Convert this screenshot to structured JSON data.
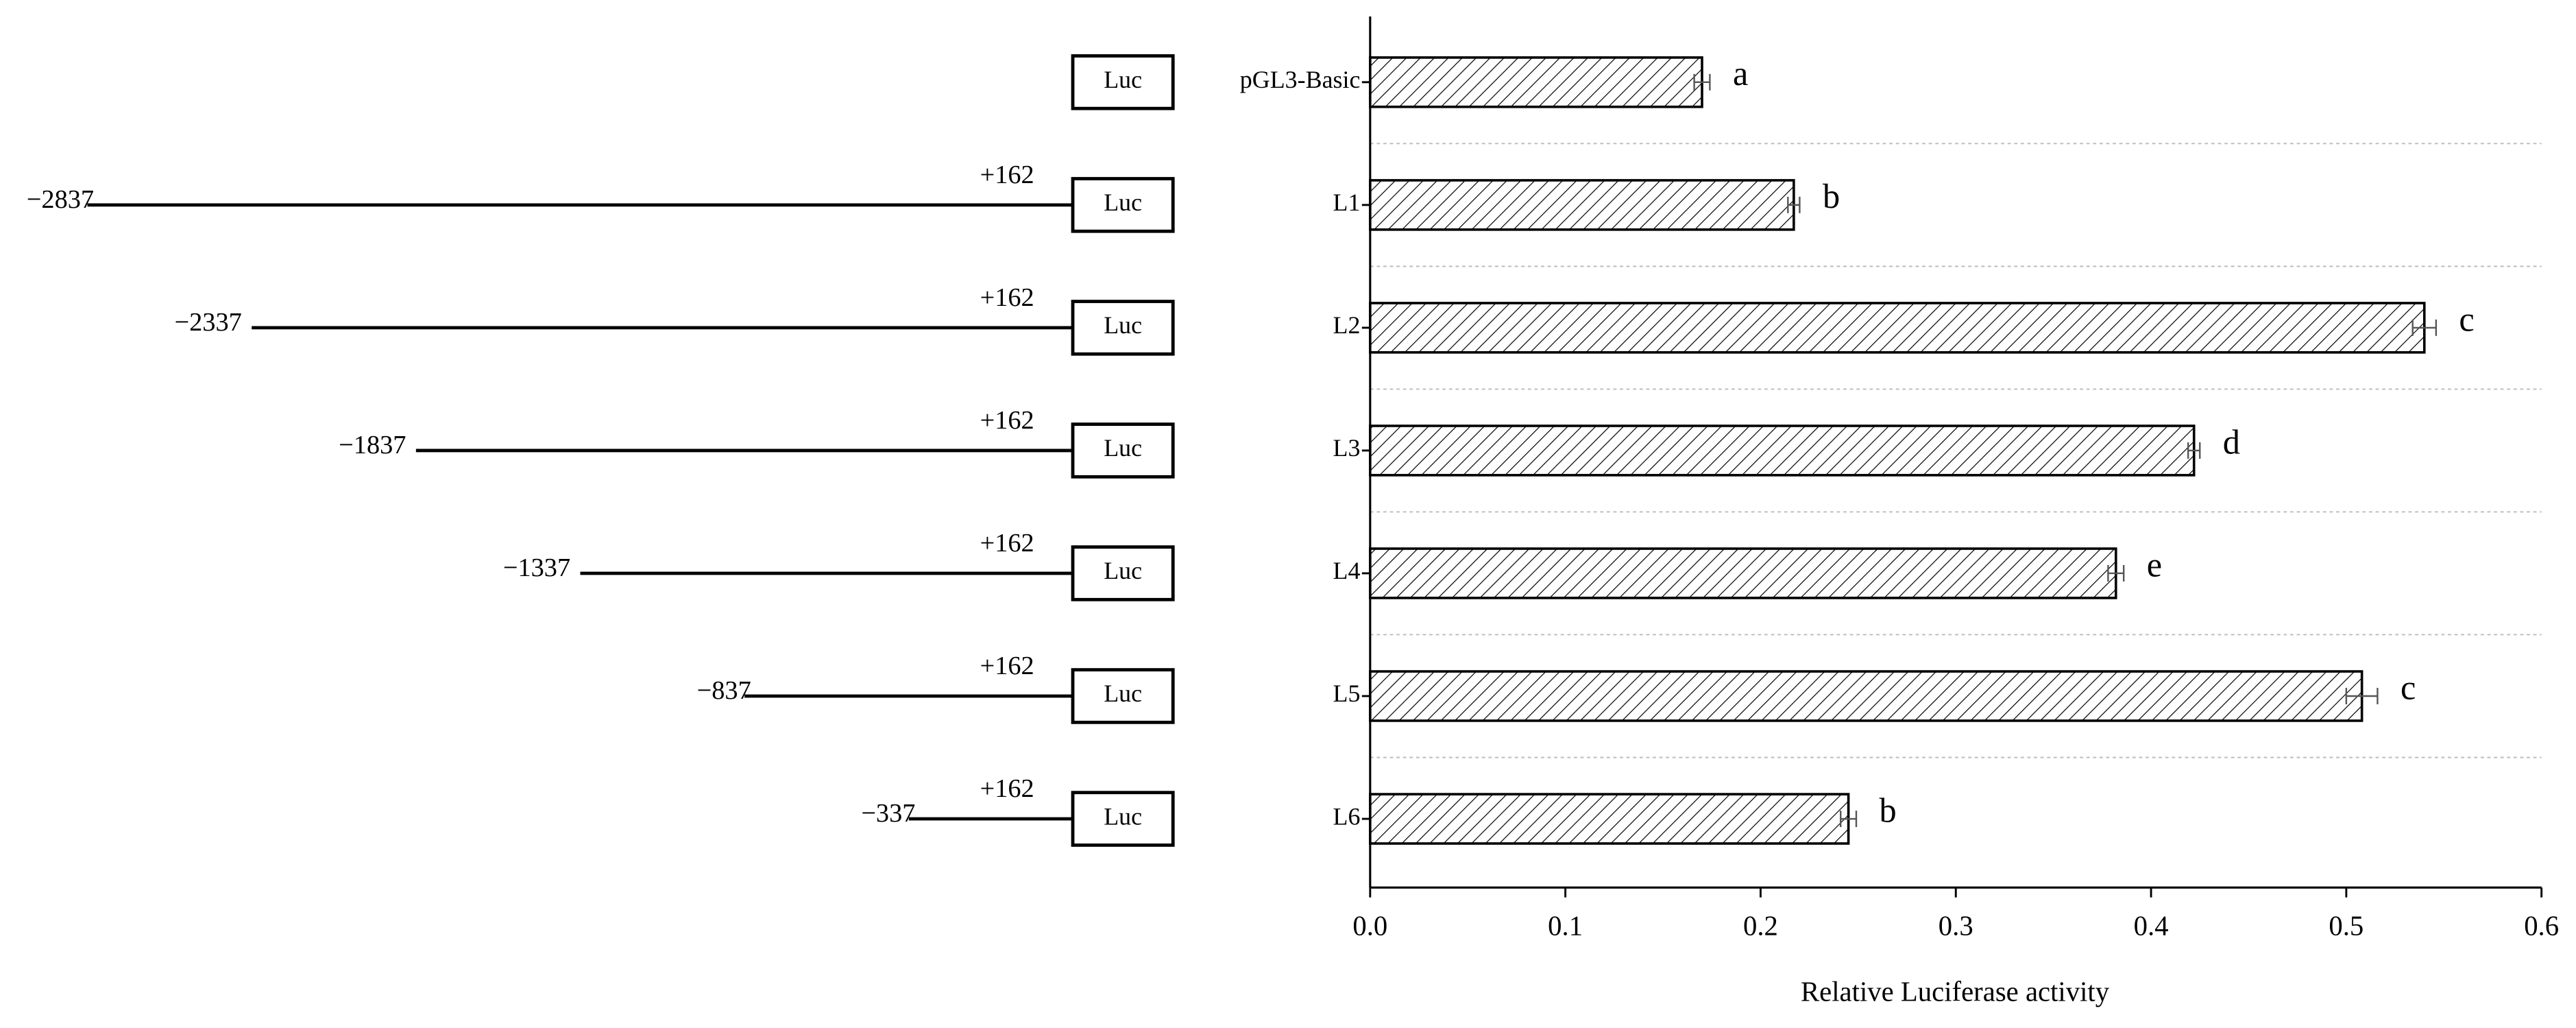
{
  "chart_data": {
    "type": "bar",
    "orientation": "horizontal",
    "x_label": "Relative Luciferase activity",
    "categories": [
      "pGL3-Basic",
      "L1",
      "L2",
      "L3",
      "L4",
      "L5",
      "L6"
    ],
    "values": [
      0.17,
      0.217,
      0.54,
      0.422,
      0.382,
      0.508,
      0.245
    ],
    "errors": [
      0.004,
      0.003,
      0.006,
      0.003,
      0.004,
      0.008,
      0.004
    ],
    "letters": [
      "a",
      "b",
      "c",
      "d",
      "e",
      "c",
      "b"
    ],
    "color": "#000000",
    "xlim": [
      0,
      0.6
    ],
    "xticks": [
      {
        "value": 0,
        "label": "0.0"
      },
      0.1,
      0.2,
      0.3,
      0.4,
      0.5,
      0.6
    ],
    "grid": true
  },
  "constructs": [
    {
      "box": "Luc"
    },
    {
      "start": {
        "value": -2837,
        "label": "−2837"
      },
      "end": {
        "value": 162,
        "label": "+162"
      },
      "box": "Luc"
    },
    {
      "start": {
        "value": -2337,
        "label": "−2337"
      },
      "end": {
        "value": 162,
        "label": "+162"
      },
      "box": "Luc"
    },
    {
      "start": {
        "value": -1837,
        "label": "−1837"
      },
      "end": {
        "value": 162,
        "label": "+162"
      },
      "box": "Luc"
    },
    {
      "start": {
        "value": -1337,
        "label": "−1337"
      },
      "end": {
        "value": 162,
        "label": "+162"
      },
      "box": "Luc"
    },
    {
      "start": {
        "value": -837,
        "label": "−837"
      },
      "end": {
        "value": 162,
        "label": "+162"
      },
      "box": "Luc"
    },
    {
      "start": {
        "value": -337,
        "label": "−337"
      },
      "end": {
        "value": 162,
        "label": "+162"
      },
      "box": "Luc"
    }
  ]
}
